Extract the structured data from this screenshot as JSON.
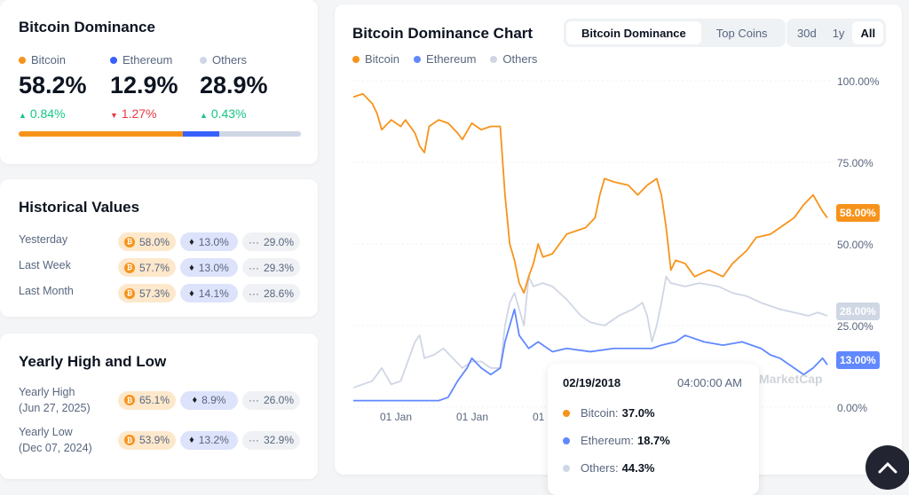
{
  "summary": {
    "title": "Bitcoin Dominance",
    "items": [
      {
        "name": "Bitcoin",
        "value": "58.2%",
        "change": "0.84%",
        "dir": "up",
        "color": "#f7931a"
      },
      {
        "name": "Ethereum",
        "value": "12.9%",
        "change": "1.27%",
        "dir": "down",
        "color": "#3861fb"
      },
      {
        "name": "Others",
        "value": "28.9%",
        "change": "0.43%",
        "dir": "up",
        "color": "#cfd6e4"
      }
    ],
    "bar": {
      "bitcoin": 58.2,
      "ethereum": 12.9,
      "others": 28.9
    }
  },
  "historical": {
    "title": "Historical Values",
    "rows": [
      {
        "label": "Yesterday",
        "btc": "58.0%",
        "eth": "13.0%",
        "oth": "29.0%"
      },
      {
        "label": "Last Week",
        "btc": "57.7%",
        "eth": "13.0%",
        "oth": "29.3%"
      },
      {
        "label": "Last Month",
        "btc": "57.3%",
        "eth": "14.1%",
        "oth": "28.6%"
      }
    ]
  },
  "yearly": {
    "title": "Yearly High and Low",
    "rows": [
      {
        "label": "Yearly High",
        "date": "(Jun 27, 2025)",
        "btc": "65.1%",
        "eth": "8.9%",
        "oth": "26.0%"
      },
      {
        "label": "Yearly Low",
        "date": "(Dec 07, 2024)",
        "btc": "53.9%",
        "eth": "13.2%",
        "oth": "32.9%"
      }
    ]
  },
  "chart_panel": {
    "title": "Bitcoin Dominance Chart",
    "tabs": [
      "Bitcoin Dominance",
      "Top Coins"
    ],
    "ranges": [
      "30d",
      "1y",
      "All"
    ],
    "watermark": "MarketCap"
  },
  "tooltip": {
    "date": "02/19/2018",
    "time": "04:00:00 AM",
    "rows": [
      {
        "label": "Bitcoin:",
        "value": "37.0%"
      },
      {
        "label": "Ethereum:",
        "value": "18.7%"
      },
      {
        "label": "Others:",
        "value": "44.3%"
      }
    ]
  },
  "chart_data": {
    "type": "line",
    "title": "Bitcoin Dominance Chart",
    "ylim": [
      0,
      100
    ],
    "yticks": [
      "100.00%",
      "75.00%",
      "50.00%",
      "25.00%",
      "0.00%"
    ],
    "xticks": [
      "01 Jan",
      "01 Jan",
      "01 Jan"
    ],
    "last_labels": [
      "58.00%",
      "28.00%",
      "13.00%"
    ],
    "series": [
      {
        "name": "Bitcoin",
        "color": "#f7931a",
        "points": [
          [
            0,
            95
          ],
          [
            2,
            96
          ],
          [
            4,
            93
          ],
          [
            5,
            90
          ],
          [
            6,
            85
          ],
          [
            8,
            88
          ],
          [
            10,
            86
          ],
          [
            11,
            88
          ],
          [
            13,
            84
          ],
          [
            14,
            80
          ],
          [
            15,
            78
          ],
          [
            16,
            86
          ],
          [
            18,
            88
          ],
          [
            20,
            87
          ],
          [
            22,
            84
          ],
          [
            23,
            82
          ],
          [
            25,
            87
          ],
          [
            27,
            85
          ],
          [
            29,
            86
          ],
          [
            31,
            86
          ],
          [
            32,
            65
          ],
          [
            33,
            50
          ],
          [
            34,
            45
          ],
          [
            35,
            38
          ],
          [
            36,
            35
          ],
          [
            37,
            40
          ],
          [
            38,
            44
          ],
          [
            39,
            50
          ],
          [
            40,
            46
          ],
          [
            42,
            47
          ],
          [
            45,
            53
          ],
          [
            49,
            55
          ],
          [
            51,
            58
          ],
          [
            52,
            65
          ],
          [
            53,
            70
          ],
          [
            55,
            69
          ],
          [
            58,
            68
          ],
          [
            60,
            65
          ],
          [
            62,
            68
          ],
          [
            64,
            70
          ],
          [
            65,
            65
          ],
          [
            66,
            55
          ],
          [
            67,
            42
          ],
          [
            68,
            45
          ],
          [
            70,
            44
          ],
          [
            72,
            40
          ],
          [
            75,
            42
          ],
          [
            78,
            40
          ],
          [
            80,
            44
          ],
          [
            83,
            48
          ],
          [
            85,
            52
          ],
          [
            88,
            53
          ],
          [
            90,
            55
          ],
          [
            93,
            58
          ],
          [
            95,
            62
          ],
          [
            97,
            65
          ],
          [
            99,
            60
          ],
          [
            100,
            58
          ]
        ]
      },
      {
        "name": "Ethereum",
        "color": "#6188ff",
        "points": [
          [
            0,
            2
          ],
          [
            10,
            2
          ],
          [
            18,
            2
          ],
          [
            20,
            3
          ],
          [
            22,
            8
          ],
          [
            24,
            12
          ],
          [
            25,
            15
          ],
          [
            27,
            12
          ],
          [
            29,
            10
          ],
          [
            31,
            12
          ],
          [
            32,
            20
          ],
          [
            33,
            25
          ],
          [
            34,
            30
          ],
          [
            35,
            22
          ],
          [
            37,
            18
          ],
          [
            39,
            20
          ],
          [
            42,
            17
          ],
          [
            45,
            18
          ],
          [
            50,
            17
          ],
          [
            55,
            18
          ],
          [
            60,
            18
          ],
          [
            63,
            18
          ],
          [
            65,
            19
          ],
          [
            68,
            20
          ],
          [
            70,
            22
          ],
          [
            74,
            20
          ],
          [
            78,
            19
          ],
          [
            82,
            20
          ],
          [
            86,
            18
          ],
          [
            88,
            16
          ],
          [
            90,
            15
          ],
          [
            93,
            12
          ],
          [
            95,
            10
          ],
          [
            97,
            12
          ],
          [
            99,
            15
          ],
          [
            100,
            13
          ]
        ]
      },
      {
        "name": "Others",
        "color": "#cfd6e4",
        "points": [
          [
            0,
            6
          ],
          [
            2,
            7
          ],
          [
            4,
            8
          ],
          [
            6,
            12
          ],
          [
            8,
            7
          ],
          [
            10,
            8
          ],
          [
            13,
            20
          ],
          [
            14,
            22
          ],
          [
            15,
            15
          ],
          [
            17,
            16
          ],
          [
            19,
            18
          ],
          [
            21,
            15
          ],
          [
            23,
            12
          ],
          [
            25,
            14
          ],
          [
            27,
            14
          ],
          [
            29,
            12
          ],
          [
            31,
            12
          ],
          [
            32,
            25
          ],
          [
            33,
            32
          ],
          [
            34,
            35
          ],
          [
            35,
            30
          ],
          [
            36,
            25
          ],
          [
            37,
            40
          ],
          [
            38,
            37
          ],
          [
            40,
            38
          ],
          [
            42,
            37
          ],
          [
            45,
            33
          ],
          [
            48,
            28
          ],
          [
            50,
            26
          ],
          [
            53,
            25
          ],
          [
            56,
            28
          ],
          [
            59,
            30
          ],
          [
            61,
            32
          ],
          [
            62,
            28
          ],
          [
            63,
            20
          ],
          [
            64,
            25
          ],
          [
            65,
            32
          ],
          [
            66,
            40
          ],
          [
            67,
            38
          ],
          [
            70,
            37
          ],
          [
            73,
            38
          ],
          [
            77,
            37
          ],
          [
            80,
            35
          ],
          [
            83,
            34
          ],
          [
            86,
            32
          ],
          [
            90,
            30
          ],
          [
            93,
            29
          ],
          [
            96,
            28
          ],
          [
            98,
            29
          ],
          [
            100,
            28
          ]
        ]
      }
    ]
  },
  "legend": [
    "Bitcoin",
    "Ethereum",
    "Others"
  ]
}
